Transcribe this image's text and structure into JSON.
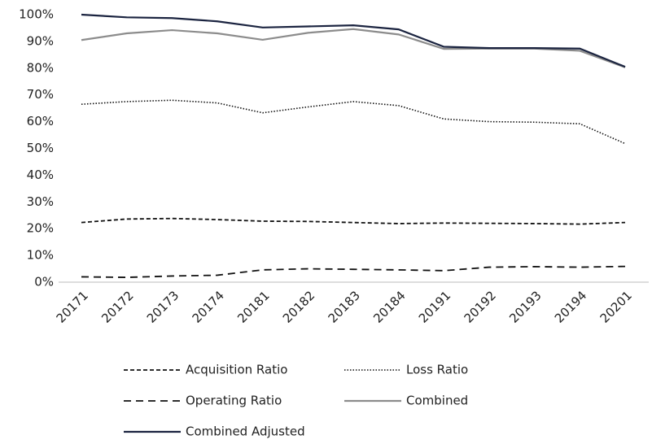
{
  "chart_data": {
    "type": "line",
    "categories": [
      "20171",
      "20172",
      "20173",
      "20174",
      "20181",
      "20182",
      "20183",
      "20184",
      "20191",
      "20192",
      "20193",
      "20194",
      "20201"
    ],
    "series": [
      {
        "name": "Acquisition Ratio",
        "color": "#111111",
        "dash": "short",
        "values": [
          22.3,
          23.6,
          23.8,
          23.4,
          22.8,
          22.7,
          22.3,
          21.9,
          22.1,
          22,
          21.9,
          21.7,
          22.3
        ]
      },
      {
        "name": "Loss Ratio",
        "color": "#111111",
        "dash": "dot",
        "values": [
          66.5,
          67.5,
          68,
          67,
          63.3,
          65.5,
          67.5,
          66,
          61,
          60,
          59.8,
          59.2,
          51.8
        ]
      },
      {
        "name": "Operating Ratio",
        "color": "#111111",
        "dash": "long",
        "values": [
          2,
          1.8,
          2.3,
          2.6,
          4.6,
          5,
          4.8,
          4.6,
          4.3,
          5.6,
          5.8,
          5.6,
          5.9
        ]
      },
      {
        "name": "Combined",
        "color": "#8c8c8c",
        "dash": "solid",
        "values": [
          90.5,
          93,
          94.2,
          93,
          90.6,
          93.2,
          94.6,
          92.6,
          87.2,
          87.3,
          87.3,
          86.5,
          80.3
        ]
      },
      {
        "name": "Combined Adjusted",
        "color": "#1b2440",
        "dash": "solid",
        "values": [
          100,
          99,
          98.7,
          97.5,
          95.2,
          95.6,
          96,
          94.5,
          88,
          87.5,
          87.5,
          87.3,
          80.5
        ]
      }
    ],
    "ylim": [
      0,
      100
    ],
    "yticks": [
      {
        "value": 0,
        "label": "0%"
      },
      {
        "value": 10,
        "label": "10%"
      },
      {
        "value": 20,
        "label": "20%"
      },
      {
        "value": 30,
        "label": "30%"
      },
      {
        "value": 40,
        "label": "40%"
      },
      {
        "value": 50,
        "label": "50%"
      },
      {
        "value": 60,
        "label": "60%"
      },
      {
        "value": 70,
        "label": "70%"
      },
      {
        "value": 80,
        "label": "80%"
      },
      {
        "value": 90,
        "label": "90%"
      },
      {
        "value": 100,
        "label": "100%"
      }
    ],
    "grid": false,
    "legend": "bottom"
  }
}
